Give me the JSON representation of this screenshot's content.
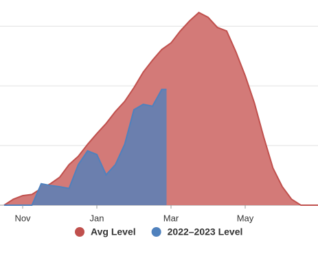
{
  "chart_data": {
    "type": "area",
    "categories": [
      null,
      null,
      "Nov",
      null,
      null,
      null,
      null,
      null,
      null,
      null,
      "Jan",
      null,
      null,
      null,
      null,
      null,
      null,
      null,
      "Mar",
      null,
      null,
      null,
      null,
      null,
      null,
      null,
      "May",
      null,
      null,
      null,
      null,
      null,
      null,
      null
    ],
    "series": [
      {
        "name": "Avg Level",
        "color": "#c0504d",
        "fill": "#d37a78",
        "values": [
          0,
          1.0,
          1.6,
          1.8,
          2.8,
          3.6,
          4.7,
          6.8,
          8.2,
          10.2,
          12,
          13.7,
          15.7,
          17.4,
          19.7,
          22.3,
          24.3,
          26.1,
          27.2,
          29.2,
          30.9,
          32.3,
          31.5,
          29.8,
          29.2,
          25.7,
          21.7,
          17.1,
          11.4,
          6.2,
          3.1,
          1.0,
          0,
          0
        ]
      },
      {
        "name": "2022–2023 Level",
        "color": "#4f81bd",
        "fill": "#6b7fae",
        "values": [
          0,
          0,
          0,
          0,
          3.6,
          3.3,
          3.1,
          2.8,
          6.8,
          9.1,
          8.5,
          5.1,
          6.8,
          10.2,
          16,
          16.9,
          16.6,
          19.4,
          null,
          null,
          null,
          null,
          null,
          null,
          null,
          null,
          null,
          null,
          null,
          null,
          null,
          null,
          null,
          null
        ]
      }
    ],
    "ylim": [
      0,
      34.4
    ],
    "yticks": [
      0,
      10,
      20,
      30
    ],
    "grid": true
  }
}
